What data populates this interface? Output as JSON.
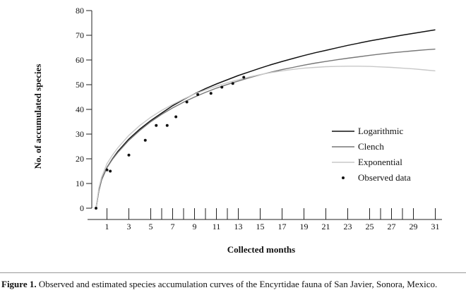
{
  "chart_data": {
    "type": "line",
    "xlabel": "Collected months",
    "ylabel": "No. of accumulated species",
    "xlim": [
      0,
      32
    ],
    "ylim": [
      0,
      80
    ],
    "x_ticks": [
      1,
      3,
      5,
      7,
      9,
      11,
      13,
      15,
      17,
      19,
      21,
      23,
      25,
      27,
      29,
      31
    ],
    "x_minor_ticks": [
      6,
      8,
      10,
      12,
      26,
      28
    ],
    "y_ticks": [
      0,
      10,
      20,
      30,
      40,
      50,
      60,
      70,
      80
    ],
    "legend_position": "right-middle",
    "series": [
      {
        "name": "Logarithmic",
        "style": "line",
        "color": "#111111",
        "x": [
          0,
          0.25,
          0.5,
          1,
          1.5,
          2,
          3,
          4,
          5,
          6,
          7,
          8,
          9,
          10,
          11,
          12,
          13,
          14,
          15,
          16,
          17,
          18,
          19,
          20,
          21,
          22,
          23,
          24,
          25,
          26,
          27,
          28,
          29,
          30,
          31
        ],
        "values": [
          0,
          7,
          11.5,
          16.5,
          20,
          23,
          28,
          32,
          35.5,
          38.5,
          41.5,
          44,
          46.3,
          48.4,
          50.3,
          52,
          53.7,
          55.2,
          56.7,
          58.1,
          59.4,
          60.6,
          61.8,
          62.9,
          63.9,
          64.9,
          65.9,
          66.8,
          67.7,
          68.5,
          69.3,
          70.1,
          70.8,
          71.5,
          72.2
        ]
      },
      {
        "name": "Clench",
        "style": "line",
        "color": "#777777",
        "x": [
          0,
          0.25,
          0.5,
          1,
          1.5,
          2,
          3,
          4,
          5,
          6,
          7,
          8,
          9,
          10,
          11,
          12,
          13,
          14,
          15,
          16,
          17,
          18,
          19,
          20,
          21,
          22,
          23,
          24,
          25,
          26,
          27,
          28,
          29,
          30,
          31
        ],
        "values": [
          0,
          7,
          11.5,
          16.5,
          19.8,
          22.6,
          27.5,
          31.5,
          35,
          38,
          40.6,
          42.9,
          45,
          46.9,
          48.6,
          50.1,
          51.5,
          52.8,
          54,
          55.1,
          56.1,
          57,
          57.9,
          58.7,
          59.4,
          60.1,
          60.7,
          61.3,
          61.9,
          62.4,
          62.9,
          63.3,
          63.7,
          64.1,
          64.4
        ]
      },
      {
        "name": "Exponential",
        "style": "line",
        "color": "#c8c8c8",
        "x": [
          0,
          0.25,
          0.5,
          1,
          1.5,
          2,
          3,
          4,
          5,
          6,
          7,
          8,
          9,
          10,
          11,
          12,
          13,
          14,
          15,
          16,
          17,
          18,
          19,
          20,
          21,
          22,
          23,
          24,
          25,
          26,
          27,
          28,
          29,
          30,
          31
        ],
        "values": [
          0,
          8,
          12.5,
          18,
          21.5,
          24.5,
          29.5,
          33.5,
          36.8,
          39.6,
          42,
          44.2,
          46.2,
          47.9,
          49.4,
          50.8,
          52,
          53.1,
          54.1,
          54.9,
          55.6,
          56.2,
          56.7,
          57,
          57.3,
          57.4,
          57.5,
          57.5,
          57.4,
          57.2,
          57,
          56.7,
          56.4,
          56,
          55.6
        ]
      },
      {
        "name": "Observed data",
        "style": "scatter",
        "color": "#111111",
        "x": [
          0,
          1,
          1.3,
          3,
          4.5,
          5.5,
          6.5,
          7.3,
          8.3,
          9.3,
          10.5,
          11.5,
          12.5,
          13.5
        ],
        "values": [
          0,
          15.5,
          15,
          21.5,
          27.5,
          33.5,
          33.5,
          37,
          43,
          46,
          46.5,
          49,
          50.5,
          53
        ]
      }
    ]
  },
  "caption": {
    "label": "Figure 1.",
    "text": " Observed and estimated species accumulation curves of the Encyrtidae fauna of San Javier, Sonora, Mexico."
  }
}
